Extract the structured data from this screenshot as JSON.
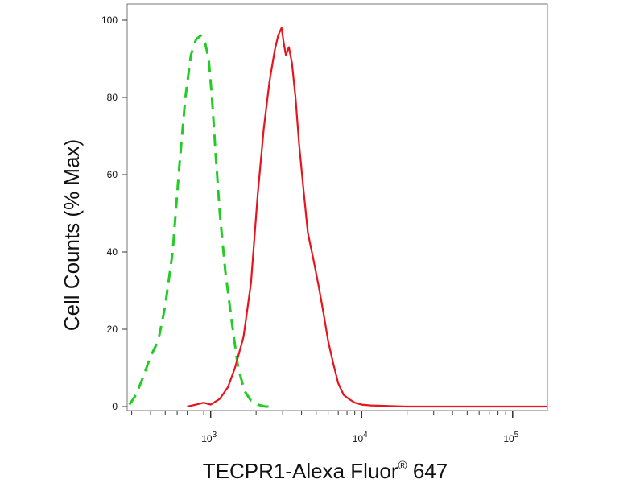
{
  "chart_data": {
    "type": "line",
    "title": "",
    "xlabel": "TECPR1-Alexa Fluor",
    "xlabel_superscript": "®",
    "xlabel_suffix": " 647",
    "ylabel": "Cell Counts (% Max)",
    "x_scale": "log",
    "xlim": [
      280,
      170000
    ],
    "ylim": [
      0,
      100
    ],
    "y_ticks": [
      0,
      20,
      40,
      60,
      80,
      100
    ],
    "x_ticks": [
      {
        "value": 1000,
        "base": "10",
        "exp": "3"
      },
      {
        "value": 10000,
        "base": "10",
        "exp": "4"
      },
      {
        "value": 100000,
        "base": "10",
        "exp": "5"
      }
    ],
    "grid": false,
    "series": [
      {
        "color": "#22cc22",
        "dash": "dashed",
        "x": [
          290,
          320,
          360,
          400,
          450,
          500,
          560,
          620,
          680,
          740,
          800,
          860,
          920,
          970,
          1020,
          1080,
          1150,
          1250,
          1380,
          1520,
          1680,
          1850,
          2050,
          2300,
          2600
        ],
        "y": [
          0.5,
          3,
          8,
          13,
          17,
          26,
          40,
          62,
          80,
          91,
          95,
          96,
          94,
          90,
          80,
          65,
          50,
          35,
          22,
          10,
          4,
          1.5,
          0.5,
          0,
          0
        ]
      },
      {
        "color": "#e8141c",
        "dash": "solid",
        "x": [
          700,
          800,
          900,
          1000,
          1150,
          1300,
          1450,
          1650,
          1850,
          2050,
          2250,
          2450,
          2650,
          2800,
          2950,
          3050,
          3150,
          3300,
          3450,
          3650,
          3850,
          4100,
          4400,
          4800,
          5200,
          5600,
          6000,
          6500,
          7000,
          7600,
          8200,
          9000,
          10000,
          11500,
          13500,
          16000,
          20000,
          30000,
          50000,
          80000,
          120000,
          170000
        ],
        "y": [
          0,
          0.5,
          1,
          0.5,
          2,
          5,
          10,
          18,
          32,
          55,
          72,
          84,
          92,
          96,
          98,
          94,
          91,
          93,
          89,
          80,
          68,
          57,
          45,
          38,
          31,
          24,
          17,
          11,
          6,
          3,
          2,
          1,
          0.5,
          0.3,
          0.2,
          0.1,
          0,
          0,
          0,
          0,
          0,
          0
        ]
      }
    ]
  }
}
